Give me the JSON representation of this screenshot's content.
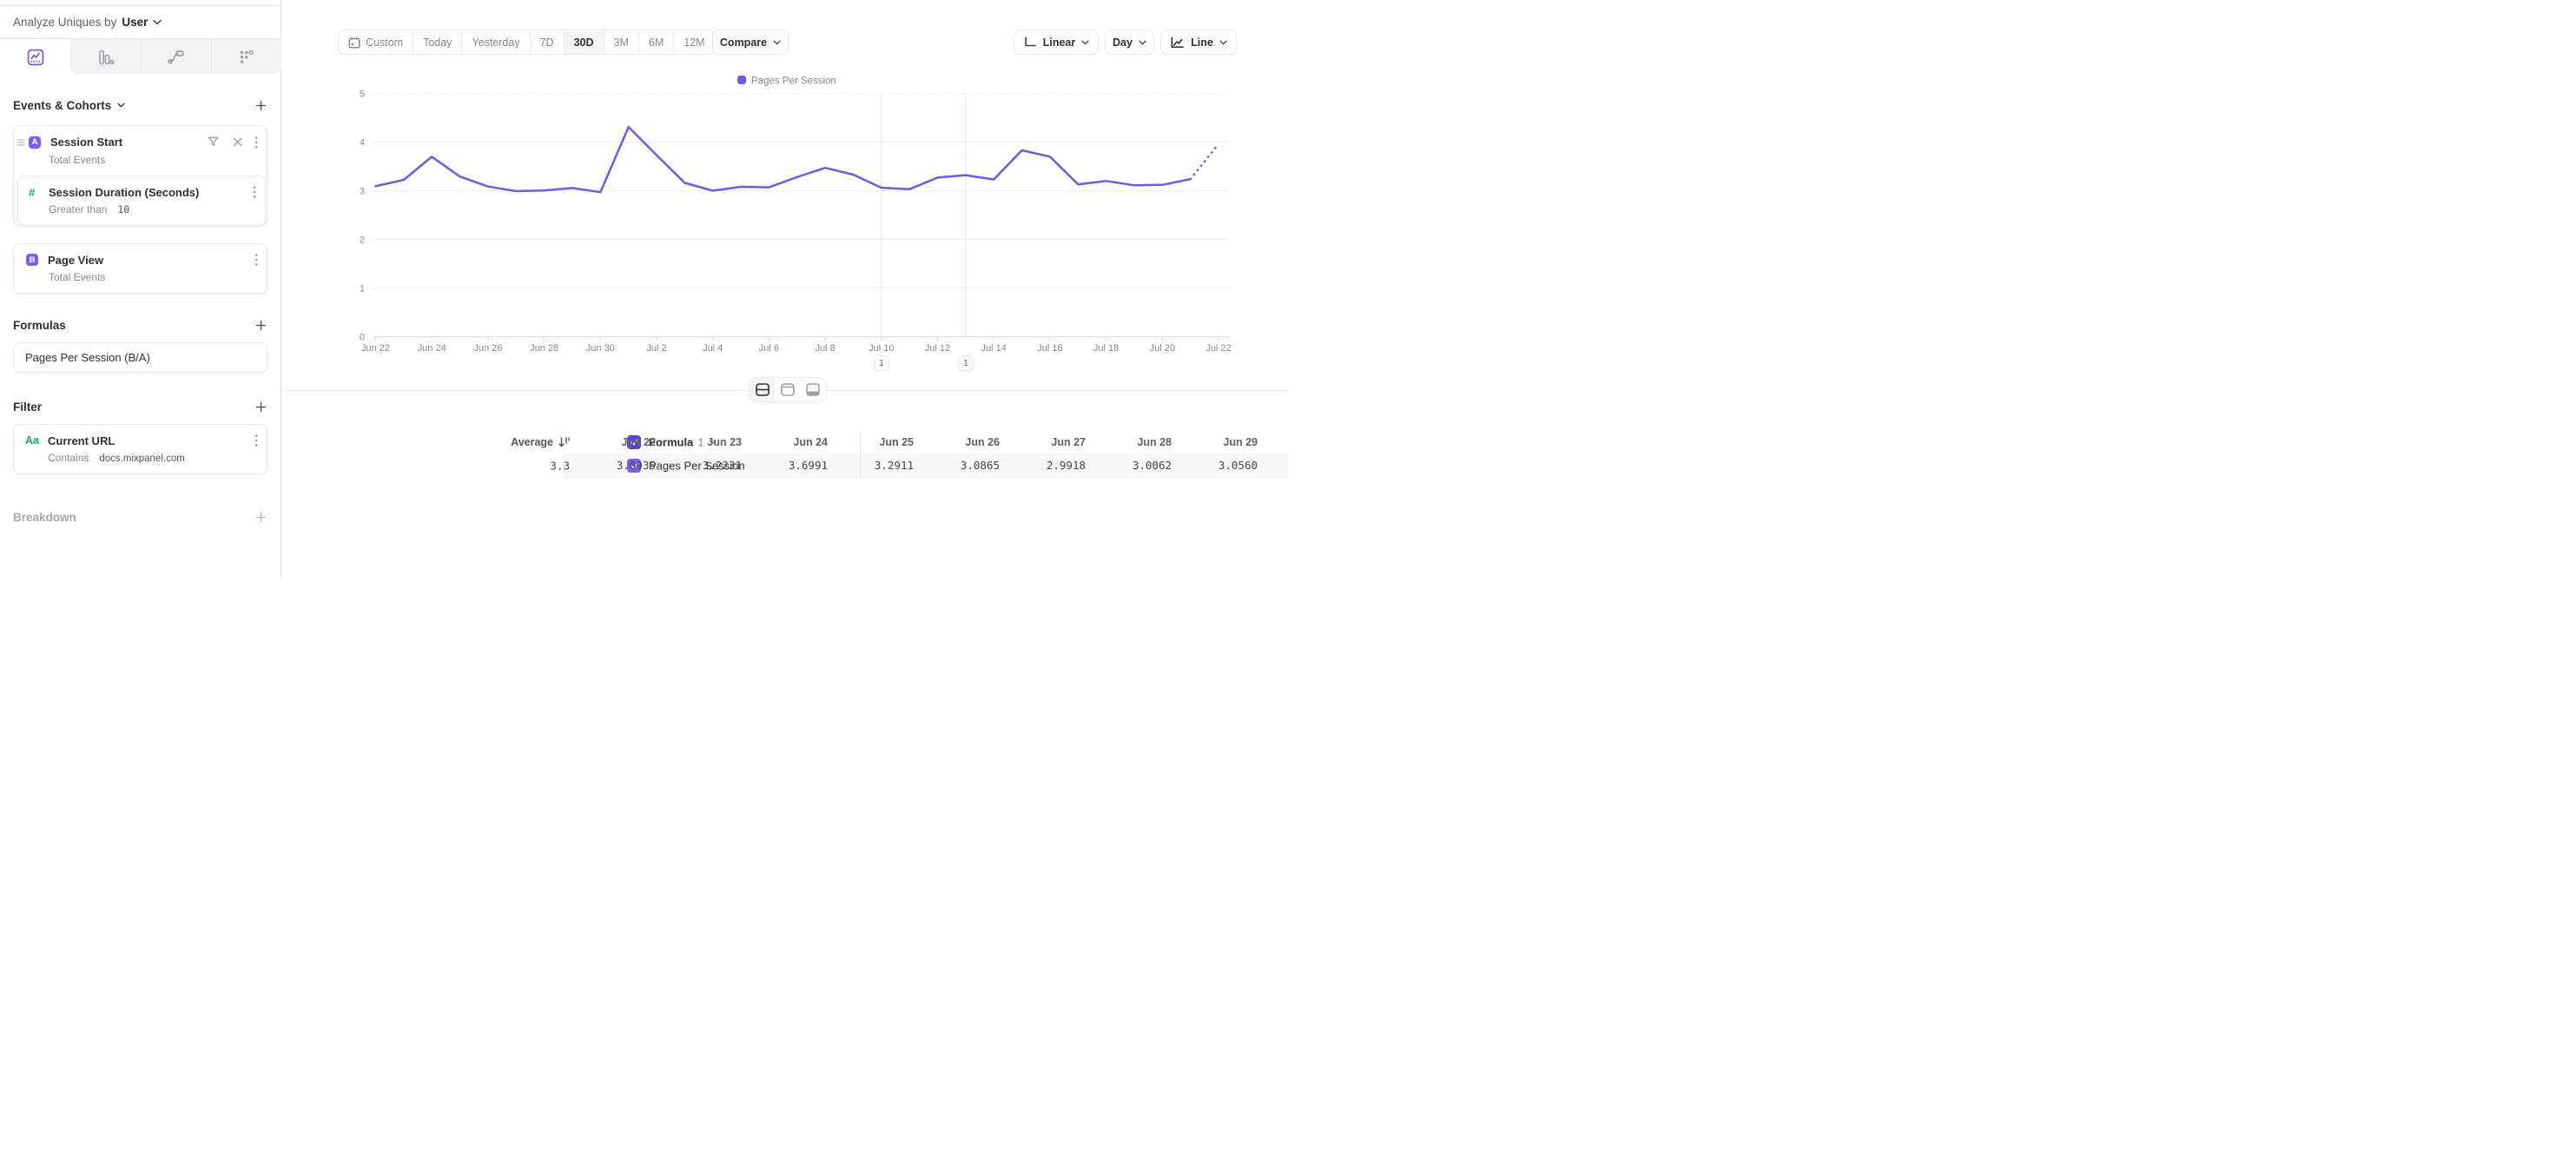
{
  "topbar": {
    "analyze_label": "Analyze Uniques by",
    "analyze_value": "User"
  },
  "sidebar": {
    "tabs": [
      {
        "icon": "insights-chart-icon",
        "active": true
      },
      {
        "icon": "bar-chart-icon",
        "active": false
      },
      {
        "icon": "flows-icon",
        "active": false
      },
      {
        "icon": "retention-icon",
        "active": false
      }
    ],
    "sections": {
      "events": "Events & Cohorts",
      "formulas": "Formulas",
      "filter": "Filter",
      "breakdown": "Breakdown"
    },
    "event_a": {
      "badge": "A",
      "name": "Session Start",
      "measure": "Total Events",
      "property": {
        "symbol": "#",
        "name": "Session Duration (Seconds)",
        "operator": "Greater than",
        "value": "10"
      }
    },
    "event_b": {
      "badge": "B",
      "name": "Page View",
      "measure": "Total Events"
    },
    "formula": {
      "name": "Pages Per Session (B/A)"
    },
    "filter_item": {
      "symbol": "Aa",
      "name": "Current URL",
      "operator": "Contains",
      "value": "docs.mixpanel.com"
    }
  },
  "toolbar": {
    "ranges": [
      "Custom",
      "Today",
      "Yesterday",
      "7D",
      "30D",
      "3M",
      "6M",
      "12M"
    ],
    "active_range": "30D",
    "compare": "Compare",
    "scale": "Linear",
    "interval": "Day",
    "chart_type": "Line"
  },
  "chart_data": {
    "type": "line",
    "title": "",
    "legend": [
      "Pages Per Session"
    ],
    "legend_position": "top-center",
    "grid": true,
    "ylim": [
      0,
      5
    ],
    "yticks": [
      0,
      1,
      2,
      3,
      4,
      5
    ],
    "x": [
      "Jun 22",
      "Jun 23",
      "Jun 24",
      "Jun 25",
      "Jun 26",
      "Jun 27",
      "Jun 28",
      "Jun 29",
      "Jun 30",
      "Jul 1",
      "Jul 2",
      "Jul 3",
      "Jul 4",
      "Jul 5",
      "Jul 6",
      "Jul 7",
      "Jul 8",
      "Jul 9",
      "Jul 10",
      "Jul 11",
      "Jul 12",
      "Jul 13",
      "Jul 14",
      "Jul 15",
      "Jul 16",
      "Jul 17",
      "Jul 18",
      "Jul 19",
      "Jul 20",
      "Jul 21",
      "Jul 22"
    ],
    "xtick_labels": [
      "Jun 22",
      "Jun 24",
      "Jun 26",
      "Jun 28",
      "Jun 30",
      "Jul 2",
      "Jul 4",
      "Jul 6",
      "Jul 8",
      "Jul 10",
      "Jul 12",
      "Jul 14",
      "Jul 16",
      "Jul 18",
      "Jul 20",
      "Jul 22"
    ],
    "series": [
      {
        "name": "Pages Per Session",
        "color": "#7456ee",
        "values": [
          3.0935,
          3.2231,
          3.6991,
          3.2911,
          3.0865,
          2.9918,
          3.0062,
          3.056,
          2.97,
          4.31,
          3.73,
          3.16,
          3.0,
          3.08,
          3.07,
          3.28,
          3.47,
          3.33,
          3.06,
          3.03,
          3.27,
          3.32,
          3.23,
          3.83,
          3.7,
          3.13,
          3.2,
          3.11,
          3.12,
          3.24,
          3.96
        ],
        "dotted_from_index": 29
      }
    ],
    "annotations": [
      {
        "date": "Jul 10",
        "label": "1"
      },
      {
        "date": "Jul 13",
        "label": "1"
      }
    ]
  },
  "table": {
    "series_label": "Formula",
    "series_index": "1",
    "metric": "Pages Per Session",
    "average_label": "Average",
    "average_value": "3.3",
    "columns": [
      "Jun 22",
      "Jun 23",
      "Jun 24",
      "Jun 25",
      "Jun 26",
      "Jun 27",
      "Jun 28",
      "Jun 29"
    ],
    "values": [
      "3.0935",
      "3.2231",
      "3.6991",
      "3.2911",
      "3.0865",
      "2.9918",
      "3.0062",
      "3.0560"
    ]
  }
}
